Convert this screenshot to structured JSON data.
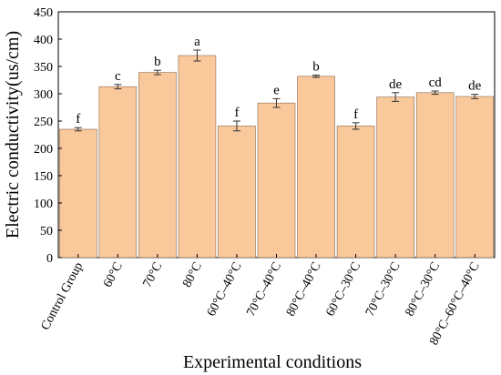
{
  "chart_data": {
    "type": "bar",
    "categories": [
      "Control Group",
      "60°C",
      "70°C",
      "80°C",
      "60°C–40°C",
      "70°C–40°C",
      "80°C–40°C",
      "60°C–30°C",
      "70°C–30°C",
      "80°C–30°C",
      "80°C–60°C–40°C"
    ],
    "values": [
      235,
      313,
      339,
      370,
      241,
      283,
      332,
      241,
      294,
      302,
      295
    ],
    "errors": [
      3,
      4,
      4,
      10,
      9,
      8,
      2,
      6,
      8,
      3,
      4
    ],
    "significance_labels": [
      "f",
      "c",
      "b",
      "a",
      "f",
      "e",
      "b",
      "f",
      "de",
      "cd",
      "de"
    ],
    "xlabel": "Experimental conditions",
    "ylabel": "Electric conductivity(us/cm)",
    "ylim": [
      0,
      450
    ],
    "yticks": [
      0,
      50,
      100,
      150,
      200,
      250,
      300,
      350,
      400,
      450
    ],
    "grid": false,
    "bar_color": "#f9c89b",
    "bar_edge_color": "#8a6a4f"
  }
}
